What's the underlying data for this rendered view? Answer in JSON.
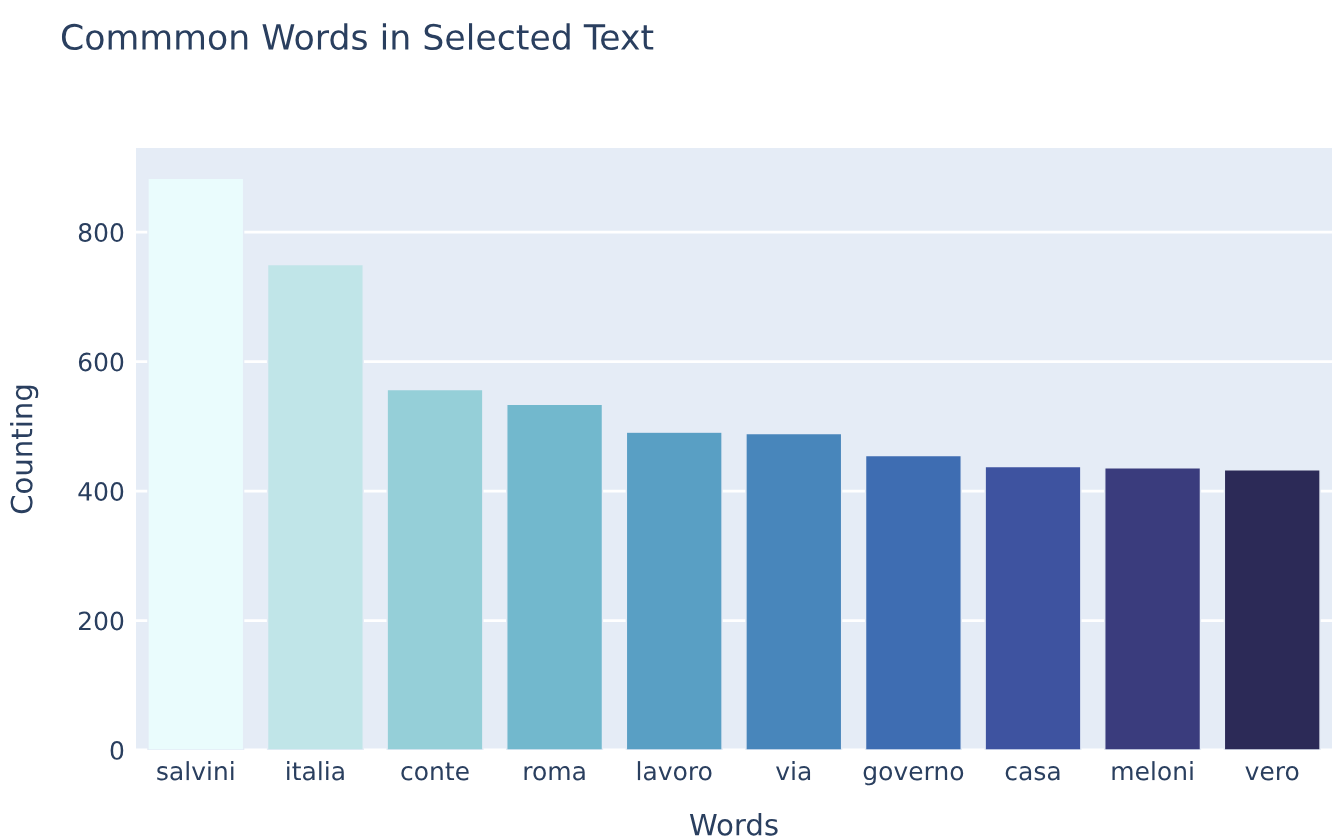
{
  "chart_data": {
    "type": "bar",
    "title": "Commmon Words in Selected Text",
    "xlabel": "Words",
    "ylabel": "Counting",
    "categories": [
      "salvini",
      "italia",
      "conte",
      "roma",
      "lavoro",
      "via",
      "governo",
      "casa",
      "meloni",
      "vero"
    ],
    "values": [
      883,
      750,
      557,
      534,
      491,
      489,
      455,
      438,
      436,
      433
    ],
    "colors": [
      "#eafcfd",
      "#c0e5e8",
      "#95cfd8",
      "#72b8cd",
      "#599fc4",
      "#4886bb",
      "#3e6db2",
      "#3e53a0",
      "#3a3c7d",
      "#2c2a57"
    ],
    "ylim": [
      0,
      930
    ],
    "yticks": [
      0,
      200,
      400,
      600,
      800
    ],
    "grid": "y"
  }
}
